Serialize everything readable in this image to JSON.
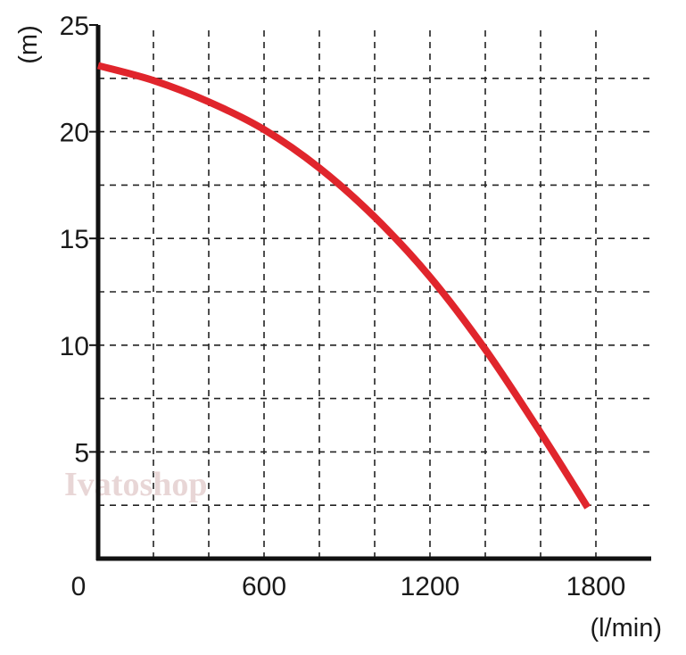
{
  "chart_data": {
    "type": "line",
    "xlabel": "(l/min)",
    "ylabel": "(m)",
    "origin_label": "0",
    "x_ticks": [
      600,
      1200,
      1800
    ],
    "y_ticks": [
      5,
      10,
      15,
      20,
      25
    ],
    "xlim": [
      0,
      2000
    ],
    "ylim": [
      0,
      25
    ],
    "x_grid_step": 200,
    "y_grid_step": 2.5,
    "grid": true,
    "grid_style": "dashed",
    "series": [
      {
        "color": "#e0252c",
        "x": [
          0,
          200,
          400,
          600,
          800,
          1000,
          1200,
          1400,
          1600,
          1770
        ],
        "y": [
          23.1,
          22.4,
          21.4,
          20.1,
          18.3,
          16.0,
          13.2,
          9.8,
          5.9,
          2.4
        ]
      }
    ],
    "watermark": "Ivatoshop"
  }
}
